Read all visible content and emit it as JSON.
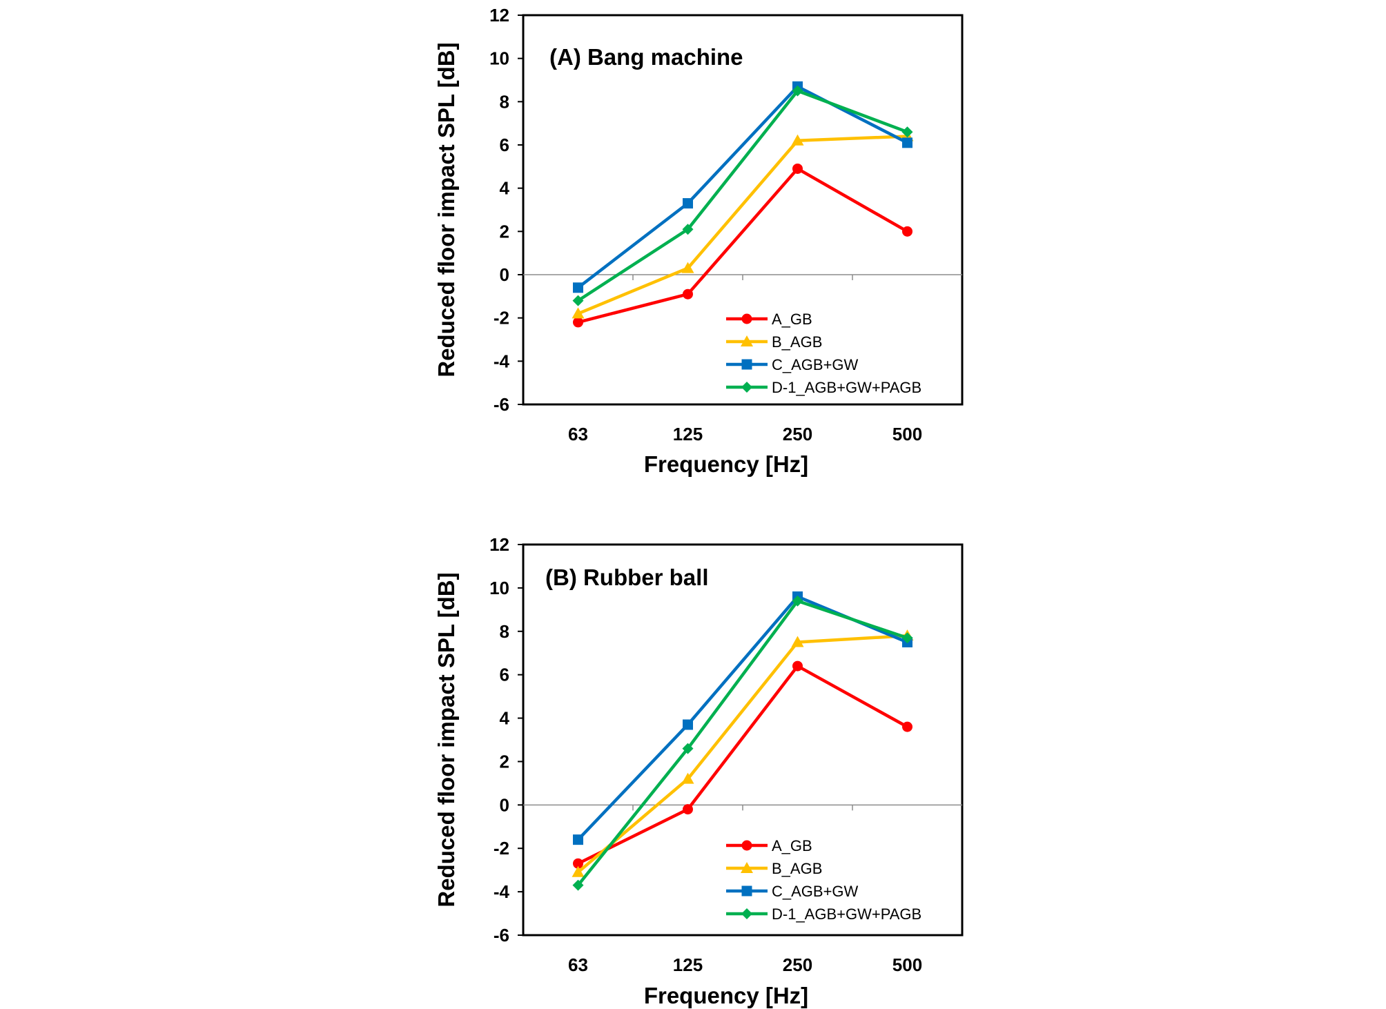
{
  "chart_data": [
    {
      "type": "line",
      "title": "(A) Bang machine",
      "xlabel": "Frequency [Hz]",
      "ylabel": "Reduced floor impact  SPL [dB]",
      "categories": [
        "63",
        "125",
        "250",
        "500"
      ],
      "ylim": [
        -6,
        12
      ],
      "yticks": [
        -6,
        -4,
        -2,
        0,
        2,
        4,
        6,
        8,
        10,
        12
      ],
      "legend_position": "bottom-right",
      "series": [
        {
          "name": "A_GB",
          "color": "#ff0000",
          "marker": "circle",
          "values": [
            -2.2,
            -0.9,
            4.9,
            2.0
          ]
        },
        {
          "name": "B_AGB",
          "color": "#ffc000",
          "marker": "triangle",
          "values": [
            -1.8,
            0.3,
            6.2,
            6.4
          ]
        },
        {
          "name": "C_AGB+GW",
          "color": "#0070c0",
          "marker": "square",
          "values": [
            -0.6,
            3.3,
            8.7,
            6.1
          ]
        },
        {
          "name": "D-1_AGB+GW+PAGB",
          "color": "#00b050",
          "marker": "diamond",
          "values": [
            -1.2,
            2.1,
            8.5,
            6.6
          ]
        }
      ]
    },
    {
      "type": "line",
      "title": "(B) Rubber ball",
      "xlabel": "Frequency [Hz]",
      "ylabel": "Reduced floor impact  SPL [dB]",
      "categories": [
        "63",
        "125",
        "250",
        "500"
      ],
      "ylim": [
        -6,
        12
      ],
      "yticks": [
        -6,
        -4,
        -2,
        0,
        2,
        4,
        6,
        8,
        10,
        12
      ],
      "legend_position": "bottom-right",
      "series": [
        {
          "name": "A_GB",
          "color": "#ff0000",
          "marker": "circle",
          "values": [
            -2.7,
            -0.2,
            6.4,
            3.6
          ]
        },
        {
          "name": "B_AGB",
          "color": "#ffc000",
          "marker": "triangle",
          "values": [
            -3.1,
            1.2,
            7.5,
            7.8
          ]
        },
        {
          "name": "C_AGB+GW",
          "color": "#0070c0",
          "marker": "square",
          "values": [
            -1.6,
            3.7,
            9.6,
            7.5
          ]
        },
        {
          "name": "D-1_AGB+GW+PAGB",
          "color": "#00b050",
          "marker": "diamond",
          "values": [
            -3.7,
            2.6,
            9.4,
            7.7
          ]
        }
      ]
    }
  ]
}
